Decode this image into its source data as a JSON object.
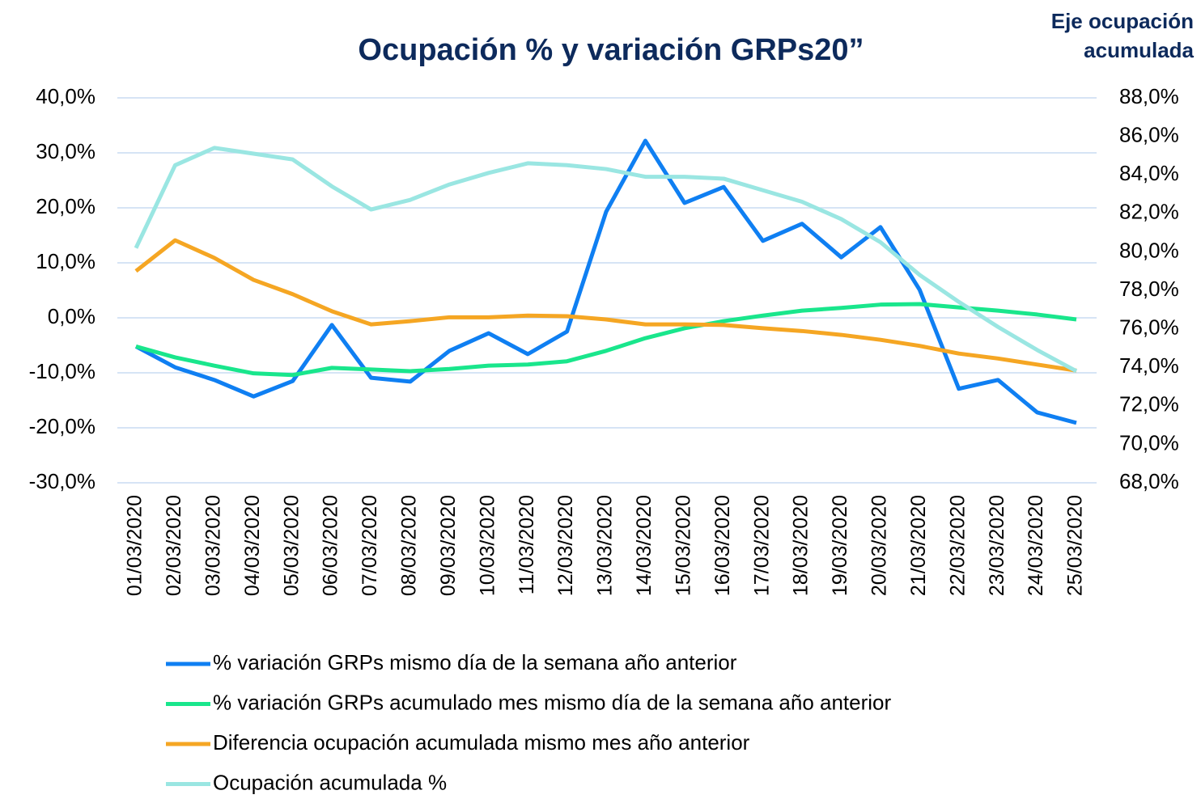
{
  "chart_data": {
    "type": "line",
    "title": "Ocupación % y variación GRPs20”",
    "y2label": [
      "Eje ocupación",
      "acumulada"
    ],
    "categories": [
      "01/03/2020",
      "02/03/2020",
      "03/03/2020",
      "04/03/2020",
      "05/03/2020",
      "06/03/2020",
      "07/03/2020",
      "08/03/2020",
      "09/03/2020",
      "10/03/2020",
      "11/03/2020",
      "12/03/2020",
      "13/03/2020",
      "14/03/2020",
      "15/03/2020",
      "16/03/2020",
      "17/03/2020",
      "18/03/2020",
      "19/03/2020",
      "20/03/2020",
      "21/03/2020",
      "22/03/2020",
      "23/03/2020",
      "24/03/2020",
      "25/03/2020"
    ],
    "series": [
      {
        "name": "% variación GRPs mismo día de la semana año anterior",
        "color": "#0f7ff2",
        "values": [
          -5.2,
          -9.0,
          -11.3,
          -14.3,
          -11.5,
          -1.3,
          -10.9,
          -11.6,
          -6.0,
          -2.8,
          -6.6,
          -2.5,
          19.3,
          32.2,
          20.9,
          23.8,
          14.0,
          17.1,
          11.0,
          16.5,
          5.1,
          -12.9,
          -11.3,
          -17.2,
          -19.1
        ]
      },
      {
        "name": "% variación GRPs acumulado mes mismo día de la semana año anterior",
        "color": "#19e68c",
        "values": [
          -5.2,
          -7.2,
          -8.7,
          -10.1,
          -10.4,
          -9.1,
          -9.4,
          -9.7,
          -9.3,
          -8.7,
          -8.5,
          -7.9,
          -6.0,
          -3.7,
          -1.9,
          -0.6,
          0.4,
          1.3,
          1.8,
          2.4,
          2.5,
          1.9,
          1.3,
          0.6,
          -0.3
        ]
      },
      {
        "name": "Diferencia ocupación acumulada mismo mes año anterior",
        "color": "#f5a623",
        "values": [
          8.5,
          14.1,
          10.9,
          6.9,
          4.3,
          1.2,
          -1.2,
          -0.6,
          0.1,
          0.1,
          0.4,
          0.3,
          -0.3,
          -1.2,
          -1.2,
          -1.3,
          -1.9,
          -2.4,
          -3.1,
          -4.0,
          -5.1,
          -6.5,
          -7.4,
          -8.5,
          -9.6
        ]
      },
      {
        "name": "Ocupación acumulada %",
        "color": "#9ae6e2",
        "axis": "y2",
        "values": [
          80.2,
          84.5,
          85.4,
          85.1,
          84.8,
          83.4,
          82.2,
          82.7,
          83.5,
          84.1,
          84.6,
          84.5,
          84.3,
          83.9,
          83.9,
          83.8,
          83.2,
          82.6,
          81.7,
          80.5,
          78.8,
          77.4,
          76.1,
          74.9,
          73.8
        ]
      }
    ],
    "ylim": [
      -30,
      40
    ],
    "yticks": [
      {
        "value": -30,
        "label": "-30,0%"
      },
      {
        "value": -20,
        "label": "-20,0%"
      },
      {
        "value": -10,
        "label": "-10,0%"
      },
      {
        "value": 0,
        "label": "0,0%"
      },
      {
        "value": 10,
        "label": "10,0%"
      },
      {
        "value": 20,
        "label": "20,0%"
      },
      {
        "value": 30,
        "label": "30,0%"
      },
      {
        "value": 40,
        "label": "40,0%"
      }
    ],
    "y2lim": [
      68,
      88
    ],
    "y2ticks": [
      {
        "value": 68,
        "label": "68,0%"
      },
      {
        "value": 70,
        "label": "70,0%"
      },
      {
        "value": 72,
        "label": "72,0%"
      },
      {
        "value": 74,
        "label": "74,0%"
      },
      {
        "value": 76,
        "label": "76,0%"
      },
      {
        "value": 78,
        "label": "78,0%"
      },
      {
        "value": 80,
        "label": "80,0%"
      },
      {
        "value": 82,
        "label": "82,0%"
      },
      {
        "value": 84,
        "label": "84,0%"
      },
      {
        "value": 86,
        "label": "86,0%"
      },
      {
        "value": 88,
        "label": "88,0%"
      }
    ],
    "grid": true,
    "legend": "bottom"
  }
}
